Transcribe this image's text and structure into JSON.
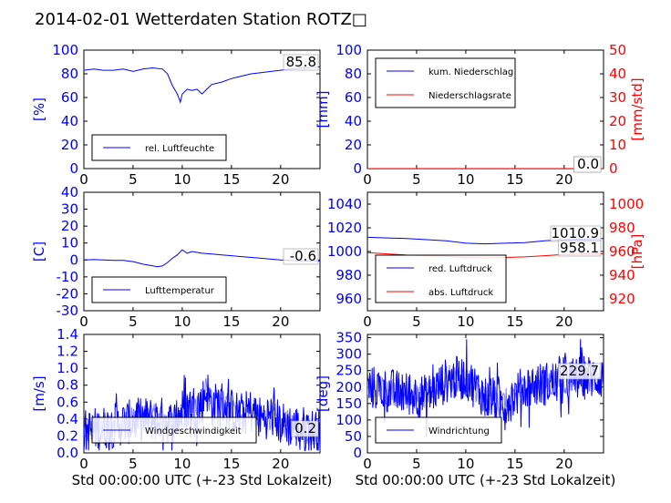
{
  "title": "2014-02-01 Wetterdaten Station ROTZ□",
  "colors": {
    "left_axis": "#0000ff",
    "right_axis": "#ff0000",
    "series_blue": "#0000ff",
    "series_red": "#ff0000",
    "series_light": "#8080ff"
  },
  "chart_data": [
    {
      "id": "humidity",
      "type": "line",
      "ylabel": "[%]",
      "xlim": [
        0,
        24
      ],
      "ylim": [
        0,
        100
      ],
      "xticks": [
        0,
        5,
        10,
        15,
        20
      ],
      "yticks": [
        0,
        20,
        40,
        60,
        80,
        100
      ],
      "legend_placement": "lower-left",
      "readout": "85.8",
      "series": [
        {
          "name": "rel. Luftfeuchte",
          "color": "#0000ff",
          "x": [
            0,
            1,
            2,
            3,
            4,
            5,
            6,
            7,
            8,
            8.5,
            9,
            9.5,
            9.8,
            10,
            10.5,
            11,
            11.5,
            12,
            12.5,
            13,
            14,
            15,
            16,
            17,
            18,
            19,
            20,
            21,
            22,
            23,
            24
          ],
          "y": [
            83,
            84,
            83,
            83,
            84,
            82,
            84,
            85,
            84,
            80,
            70,
            63,
            56,
            63,
            67,
            66,
            67,
            63,
            67,
            71,
            73,
            76,
            78,
            80,
            81,
            82,
            83,
            84,
            85,
            85,
            86
          ]
        }
      ]
    },
    {
      "id": "precipitation",
      "type": "line",
      "ylabel": "[mm]",
      "ylabel_right": "[mm/std]",
      "xlim": [
        0,
        24
      ],
      "ylim": [
        0,
        100
      ],
      "ylim_right": [
        0,
        50
      ],
      "xticks": [
        0,
        5,
        10,
        15,
        20
      ],
      "yticks": [
        0,
        20,
        40,
        60,
        80,
        100
      ],
      "yticks_right": [
        0,
        10,
        20,
        30,
        40,
        50
      ],
      "legend_placement": "upper-left",
      "readout": "0.0",
      "readout_right": "0.0",
      "series": [
        {
          "name": "kum. Niederschlag",
          "color": "#0000ff",
          "x": [
            0,
            24
          ],
          "y": [
            0,
            0
          ]
        },
        {
          "name": "Niederschlagsrate",
          "color": "#ff0000",
          "x": [
            0,
            24
          ],
          "y": [
            0,
            0
          ]
        }
      ]
    },
    {
      "id": "temperature",
      "type": "line",
      "ylabel": "[C]",
      "xlim": [
        0,
        24
      ],
      "ylim": [
        -30,
        40
      ],
      "xticks": [
        0,
        5,
        10,
        15,
        20
      ],
      "yticks": [
        -30,
        -20,
        -10,
        0,
        10,
        20,
        30,
        40
      ],
      "legend_placement": "lower-left",
      "readout": "-0.6",
      "series": [
        {
          "name": "Lufttemperatur",
          "color": "#0000ff",
          "x": [
            0,
            1,
            2,
            3,
            4,
            5,
            6,
            7,
            7.5,
            8,
            8.5,
            9,
            9.5,
            10,
            10.5,
            11,
            12,
            13,
            14,
            15,
            16,
            17,
            18,
            19,
            20,
            21,
            22,
            23,
            24
          ],
          "y": [
            0,
            0.2,
            0,
            -0.2,
            -0.3,
            -1,
            -2.5,
            -3.5,
            -4,
            -3.5,
            -1.5,
            1,
            3,
            6,
            4,
            5,
            4,
            3.5,
            3,
            2.5,
            2,
            1.5,
            1,
            0.5,
            0,
            -0.2,
            -0.5,
            -0.6,
            -0.6
          ]
        }
      ]
    },
    {
      "id": "pressure",
      "type": "line",
      "ylabel_right": "[hPa]",
      "xlim": [
        0,
        24
      ],
      "ylim": [
        950,
        1050
      ],
      "ylim_right": [
        910,
        1010
      ],
      "xticks": [
        0,
        5,
        10,
        15,
        20
      ],
      "yticks": [
        960,
        980,
        1000,
        1020,
        1040
      ],
      "yticks_right": [
        920,
        940,
        960,
        980,
        1000
      ],
      "legend_placement": "lower-left",
      "readout": "1010.9",
      "readout_right": "958.1",
      "series": [
        {
          "name": "red. Luftdruck",
          "color": "#0000ff",
          "axis": "left",
          "x": [
            0,
            2,
            4,
            6,
            8,
            10,
            12,
            14,
            16,
            18,
            20,
            22,
            24
          ],
          "y": [
            1012,
            1011.5,
            1011,
            1010,
            1009,
            1007,
            1006.5,
            1007,
            1007.5,
            1009,
            1010,
            1010.5,
            1010.9
          ]
        },
        {
          "name": "abs. Luftdruck",
          "color": "#ff0000",
          "axis": "right",
          "x": [
            0,
            2,
            4,
            6,
            8,
            10,
            12,
            14,
            16,
            18,
            20,
            22,
            24
          ],
          "y": [
            959,
            958,
            957,
            956.5,
            956,
            955,
            954.5,
            955,
            955.5,
            956.5,
            957.5,
            958,
            958.1
          ]
        }
      ]
    },
    {
      "id": "wind_speed",
      "type": "line",
      "ylabel": "[m/s]",
      "xlabel": "Std 00:00:00 UTC (+-23 Std Lokalzeit)",
      "xlim": [
        0,
        24
      ],
      "ylim": [
        0,
        1.4
      ],
      "xticks": [
        0,
        5,
        10,
        15,
        20
      ],
      "yticks": [
        0.0,
        0.2,
        0.4,
        0.6,
        0.8,
        1.0,
        1.2,
        1.4
      ],
      "legend_placement": "lower-left",
      "readout": "0.2",
      "series": [
        {
          "name": "Windgeschwindigkeit",
          "color": "#0000ff",
          "style": "noisy",
          "x": [
            0,
            2,
            4,
            6,
            8,
            9,
            10,
            11,
            12,
            12.5,
            13,
            14,
            15,
            16,
            17,
            18,
            19,
            20,
            22,
            24
          ],
          "y": [
            0.25,
            0.3,
            0.35,
            0.4,
            0.4,
            0.35,
            0.5,
            0.55,
            0.6,
            0.75,
            0.55,
            0.6,
            0.5,
            0.45,
            0.5,
            0.4,
            0.45,
            0.35,
            0.3,
            0.25
          ]
        }
      ]
    },
    {
      "id": "wind_direction",
      "type": "line",
      "ylabel": "[deg]",
      "xlabel": "Std 00:00:00 UTC (+-23 Std Lokalzeit)",
      "xlim": [
        0,
        24
      ],
      "ylim": [
        0,
        360
      ],
      "xticks": [
        0,
        5,
        10,
        15,
        20
      ],
      "yticks": [
        0,
        50,
        100,
        150,
        200,
        250,
        300,
        350
      ],
      "legend_placement": "lower-left",
      "readout": "229.7",
      "series": [
        {
          "name": "Windrichtung",
          "color": "#0000ff",
          "style": "noisy",
          "x": [
            0,
            2,
            4,
            6,
            8,
            10,
            12,
            14,
            16,
            18,
            20,
            22,
            24
          ],
          "y": [
            200,
            190,
            180,
            170,
            220,
            230,
            170,
            150,
            200,
            210,
            220,
            230,
            230
          ]
        }
      ]
    }
  ]
}
